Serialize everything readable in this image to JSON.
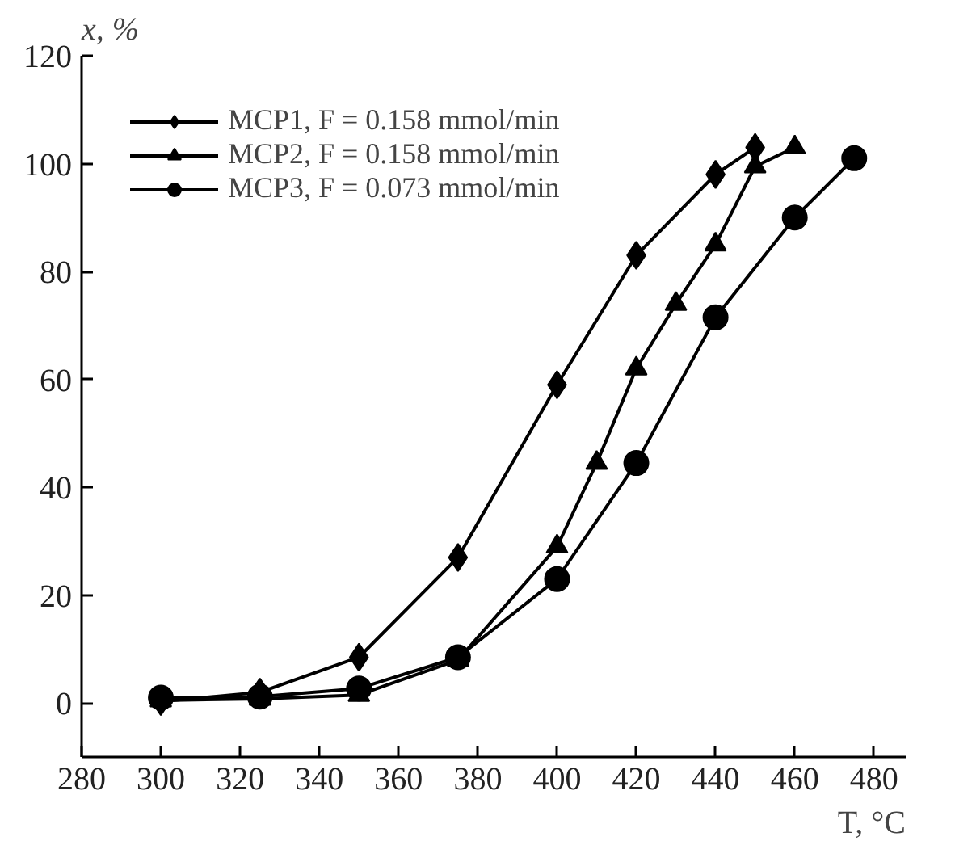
{
  "chart_data": {
    "type": "line",
    "xlabel": "T, °C",
    "ylabel": "x, %",
    "xlim": [
      280,
      488
    ],
    "xticks": [
      280,
      300,
      320,
      340,
      360,
      380,
      400,
      420,
      440,
      460,
      480
    ],
    "ylim": [
      -10,
      120
    ],
    "yticks": [
      0,
      20,
      40,
      60,
      80,
      100,
      120
    ],
    "grid": false,
    "legend": "top left",
    "line_style": "solid",
    "series": [
      {
        "name": "MCP1, F = 0.158 mmol/min",
        "color": "#000000",
        "marker": "diamond",
        "x": [
          300,
          325,
          350,
          375,
          400,
          420,
          440,
          450
        ],
        "values": [
          0.3,
          2,
          8.5,
          27,
          59,
          83,
          98,
          103
        ]
      },
      {
        "name": "MCP2, F = 0.158 mmol/min",
        "color": "#000000",
        "marker": "triangle",
        "x": [
          300,
          325,
          350,
          375,
          400,
          410,
          420,
          430,
          440,
          450,
          460
        ],
        "values": [
          0.5,
          0.8,
          1.5,
          8,
          29,
          44.5,
          62,
          74,
          85,
          99.5,
          103
        ]
      },
      {
        "name": "MCP3, F = 0.073 mmol/min",
        "color": "#000000",
        "marker": "circle",
        "x": [
          300,
          325,
          350,
          375,
          400,
          420,
          440,
          460,
          475
        ],
        "values": [
          1,
          1.2,
          2.7,
          8.5,
          23,
          44.5,
          71.5,
          90,
          101
        ]
      }
    ]
  }
}
